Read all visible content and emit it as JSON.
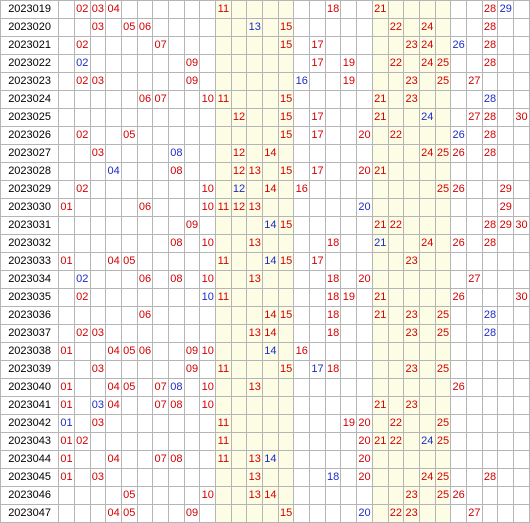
{
  "colors": {
    "front": "#d40000",
    "back": "#1c2bc8",
    "highlight": "#fdfde6",
    "grid": "#b5b5b5"
  },
  "columns": 30,
  "rows": [
    {
      "period": "2023019",
      "red": [
        2,
        3,
        4,
        11,
        18,
        21,
        28
      ],
      "blue": [
        29
      ]
    },
    {
      "period": "2023020",
      "red": [
        3,
        5,
        6,
        15,
        22,
        24,
        28
      ],
      "blue": [
        13
      ]
    },
    {
      "period": "2023021",
      "red": [
        2,
        7,
        15,
        17,
        23,
        24,
        28
      ],
      "blue": [
        26
      ]
    },
    {
      "period": "2023022",
      "red": [
        9,
        17,
        19,
        22,
        24,
        25,
        28
      ],
      "blue": [
        2
      ]
    },
    {
      "period": "2023023",
      "red": [
        2,
        3,
        9,
        19,
        23,
        25,
        27
      ],
      "blue": [
        16
      ]
    },
    {
      "period": "2023024",
      "red": [
        6,
        7,
        10,
        11,
        15,
        21,
        23
      ],
      "blue": [
        28
      ]
    },
    {
      "period": "2023025",
      "red": [
        12,
        15,
        17,
        21,
        27,
        28,
        30
      ],
      "blue": [
        24
      ]
    },
    {
      "period": "2023026",
      "red": [
        2,
        5,
        15,
        17,
        20,
        22,
        28
      ],
      "blue": [
        26
      ]
    },
    {
      "period": "2023027",
      "red": [
        3,
        12,
        14,
        24,
        25,
        26,
        28
      ],
      "blue": [
        8
      ]
    },
    {
      "period": "2023028",
      "red": [
        8,
        12,
        13,
        15,
        17,
        20,
        21
      ],
      "blue": [
        4
      ]
    },
    {
      "period": "2023029",
      "red": [
        2,
        10,
        14,
        16,
        25,
        26,
        29
      ],
      "blue": [
        12
      ]
    },
    {
      "period": "2023030",
      "red": [
        1,
        6,
        10,
        11,
        12,
        13,
        29
      ],
      "blue": [
        20
      ]
    },
    {
      "period": "2023031",
      "red": [
        9,
        15,
        21,
        22,
        28,
        29,
        30
      ],
      "blue": [
        14
      ]
    },
    {
      "period": "2023032",
      "red": [
        8,
        10,
        13,
        18,
        24,
        26,
        28
      ],
      "blue": [
        21
      ]
    },
    {
      "period": "2023033",
      "red": [
        1,
        4,
        5,
        11,
        15,
        17,
        23
      ],
      "blue": [
        14
      ]
    },
    {
      "period": "2023034",
      "red": [
        6,
        8,
        10,
        13,
        18,
        20,
        27
      ],
      "blue": [
        2
      ]
    },
    {
      "period": "2023035",
      "red": [
        2,
        11,
        18,
        19,
        21,
        26,
        30
      ],
      "blue": [
        10
      ]
    },
    {
      "period": "2023036",
      "red": [
        6,
        14,
        15,
        18,
        21,
        23,
        25
      ],
      "blue": [
        28
      ]
    },
    {
      "period": "2023037",
      "red": [
        2,
        3,
        13,
        14,
        18,
        23,
        25
      ],
      "blue": [
        28
      ]
    },
    {
      "period": "2023038",
      "red": [
        1,
        4,
        5,
        6,
        9,
        10,
        16
      ],
      "blue": [
        14
      ]
    },
    {
      "period": "2023039",
      "red": [
        3,
        9,
        11,
        15,
        18,
        23,
        25
      ],
      "blue": [
        17
      ]
    },
    {
      "period": "2023040",
      "red": [
        1,
        4,
        5,
        7,
        10,
        13,
        26
      ],
      "blue": [
        8
      ]
    },
    {
      "period": "2023041",
      "red": [
        1,
        4,
        7,
        8,
        10,
        21,
        23
      ],
      "blue": [
        3
      ]
    },
    {
      "period": "2023042",
      "red": [
        3,
        11,
        19,
        20,
        22,
        25
      ],
      "blue": [
        1
      ]
    },
    {
      "period": "2023043",
      "red": [
        1,
        2,
        11,
        20,
        21,
        22,
        25
      ],
      "blue": [
        24
      ]
    },
    {
      "period": "2023044",
      "red": [
        1,
        4,
        7,
        8,
        11,
        13,
        20
      ],
      "blue": [
        14
      ]
    },
    {
      "period": "2023045",
      "red": [
        1,
        3,
        13,
        20,
        24,
        25,
        28
      ],
      "blue": [
        18
      ]
    },
    {
      "period": "2023046",
      "red": [
        5,
        10,
        13,
        14,
        23,
        25,
        26
      ],
      "blue": []
    },
    {
      "period": "2023047",
      "red": [
        4,
        5,
        9,
        15,
        22,
        23,
        27
      ],
      "blue": [
        20
      ]
    }
  ]
}
